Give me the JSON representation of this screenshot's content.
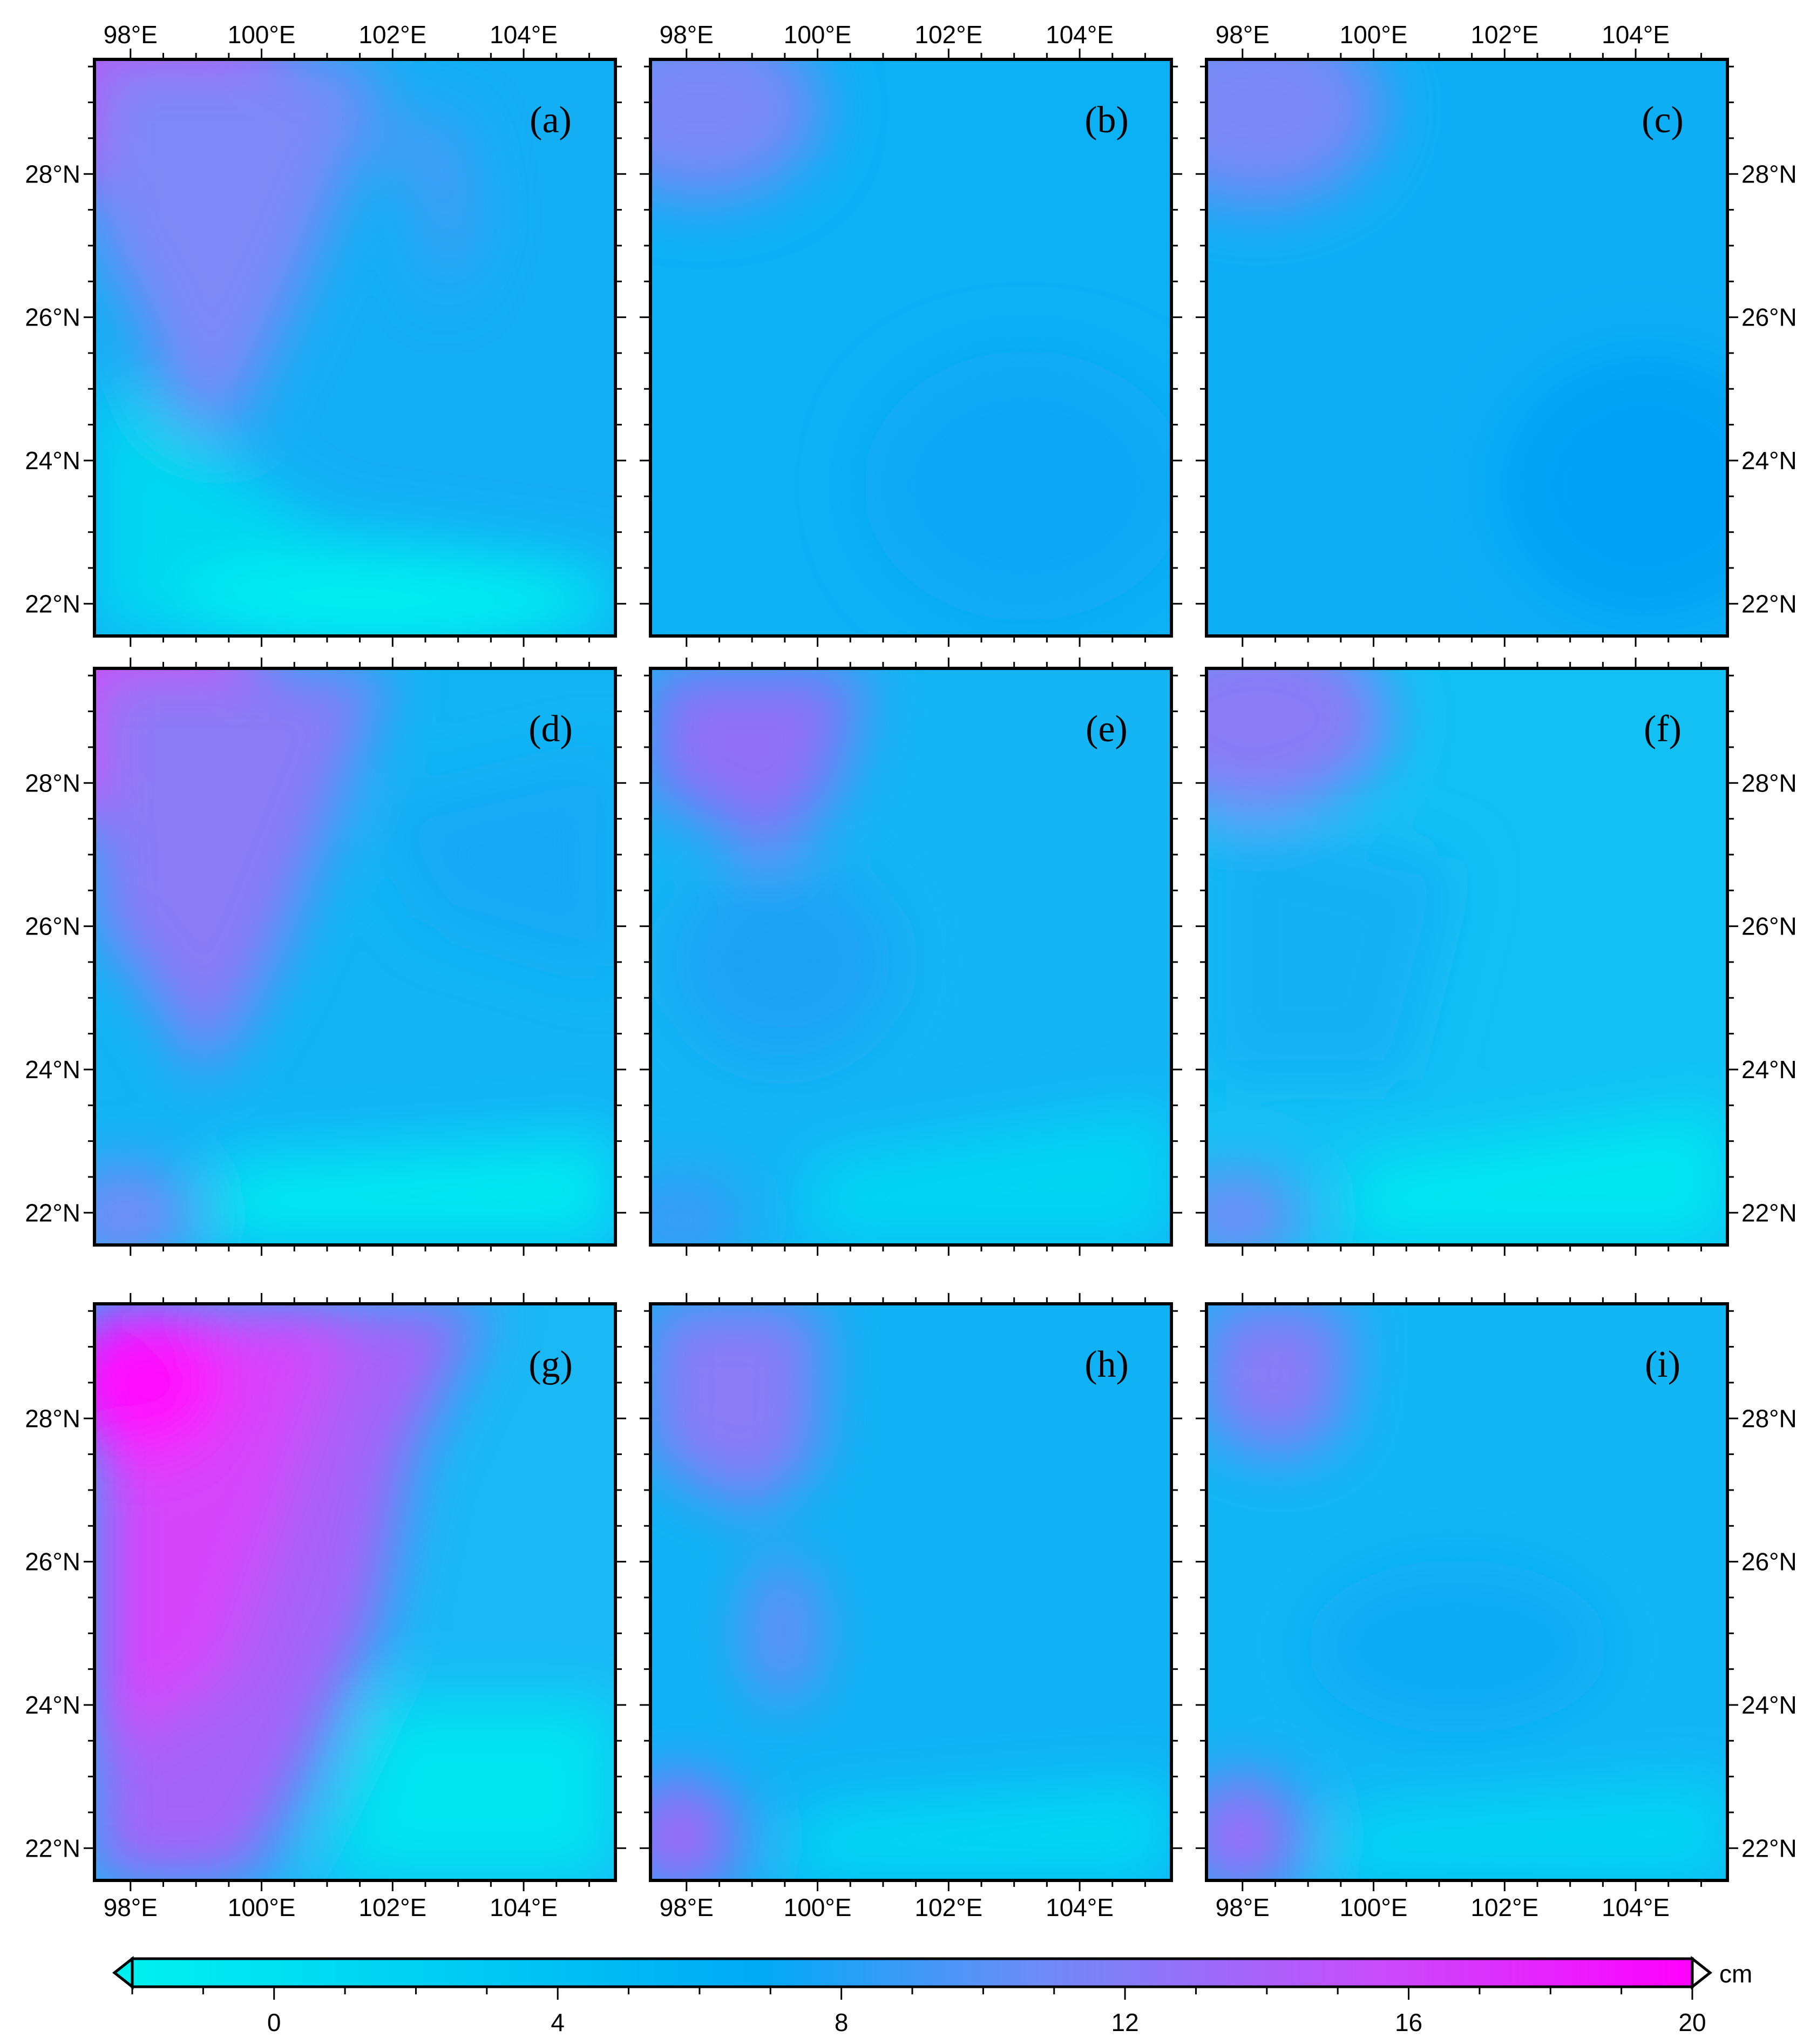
{
  "figure": {
    "lon_labels": [
      "98°E",
      "100°E",
      "102°E",
      "104°E"
    ],
    "lat_labels": [
      "22°N",
      "24°N",
      "26°N",
      "28°N"
    ],
    "panels": [
      {
        "label": "(a)"
      },
      {
        "label": "(b)"
      },
      {
        "label": "(c)"
      },
      {
        "label": "(d)"
      },
      {
        "label": "(e)"
      },
      {
        "label": "(f)"
      },
      {
        "label": "(g)"
      },
      {
        "label": "(h)"
      },
      {
        "label": "(i)"
      }
    ]
  },
  "colorbar": {
    "unit": "cm",
    "ticks": [
      "0",
      "4",
      "8",
      "12",
      "16",
      "20"
    ],
    "colors": {
      "low": "#00f0f0",
      "mid": "#00b0f0",
      "mid_high": "#8c78f0",
      "high": "#ff00ff"
    }
  }
}
